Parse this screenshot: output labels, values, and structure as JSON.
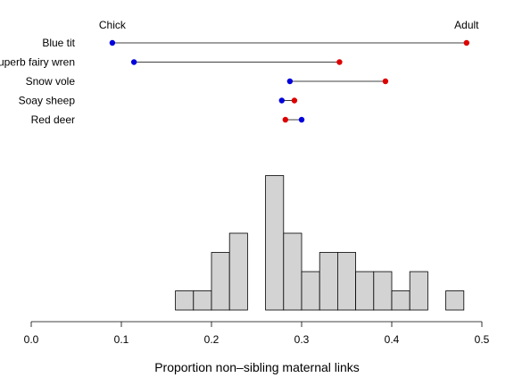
{
  "chart_data": [
    {
      "type": "dumbbell",
      "legend": {
        "start_label": "Chick",
        "end_label": "Adult",
        "start_color": "#0000DD",
        "end_color": "#DD0000"
      },
      "line_color": "#000000",
      "rows": [
        {
          "label": "Blue tit",
          "chick": 0.09,
          "adult": 0.483
        },
        {
          "label": "Superb fairy wren",
          "chick": 0.114,
          "adult": 0.342
        },
        {
          "label": "Snow vole",
          "chick": 0.287,
          "adult": 0.393
        },
        {
          "label": "Soay sheep",
          "chick": 0.278,
          "adult": 0.292
        },
        {
          "label": "Red deer",
          "adult": 0.282,
          "chick": 0.3
        }
      ]
    },
    {
      "type": "histogram",
      "bin_width": 0.02,
      "bins": [
        {
          "start": 0.16,
          "end": 0.18,
          "count": 1
        },
        {
          "start": 0.18,
          "end": 0.2,
          "count": 1
        },
        {
          "start": 0.2,
          "end": 0.22,
          "count": 3
        },
        {
          "start": 0.22,
          "end": 0.24,
          "count": 4
        },
        {
          "start": 0.24,
          "end": 0.26,
          "count": 0
        },
        {
          "start": 0.26,
          "end": 0.28,
          "count": 7
        },
        {
          "start": 0.28,
          "end": 0.3,
          "count": 4
        },
        {
          "start": 0.3,
          "end": 0.32,
          "count": 2
        },
        {
          "start": 0.32,
          "end": 0.34,
          "count": 3
        },
        {
          "start": 0.34,
          "end": 0.36,
          "count": 3
        },
        {
          "start": 0.36,
          "end": 0.38,
          "count": 2
        },
        {
          "start": 0.38,
          "end": 0.4,
          "count": 2
        },
        {
          "start": 0.4,
          "end": 0.42,
          "count": 1
        },
        {
          "start": 0.42,
          "end": 0.44,
          "count": 2
        },
        {
          "start": 0.44,
          "end": 0.46,
          "count": 0
        },
        {
          "start": 0.46,
          "end": 0.48,
          "count": 1
        }
      ],
      "bar_color": "#D3D3D3",
      "xlabel": "Proportion non–sibling maternal links",
      "xlim": [
        0.0,
        0.5
      ],
      "xticks": [
        0.0,
        0.1,
        0.2,
        0.3,
        0.4,
        0.5
      ],
      "xtick_labels": [
        "0.0",
        "0.1",
        "0.2",
        "0.3",
        "0.4",
        "0.5"
      ],
      "grid": false
    }
  ]
}
